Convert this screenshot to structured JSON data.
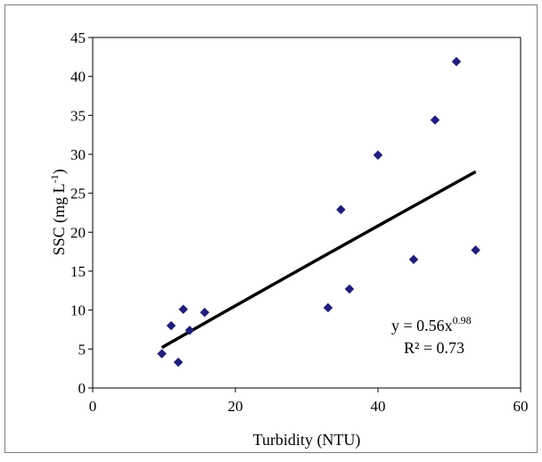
{
  "chart_data": {
    "type": "scatter",
    "xlabel": "Turbidity (NTU)",
    "ylabel_main": "SSC (mg L",
    "ylabel_sup": "-1",
    "ylabel_close": ")",
    "xlim": [
      0,
      60
    ],
    "ylim": [
      0,
      45
    ],
    "x_ticks": [
      0,
      20,
      40,
      60
    ],
    "y_ticks": [
      0,
      5,
      10,
      15,
      20,
      25,
      30,
      35,
      40,
      45
    ],
    "grid": false,
    "legend": "none",
    "marker_color": "#1f1f7a",
    "marker_shape": "diamond",
    "points": [
      {
        "x": 9.7,
        "y": 4.4
      },
      {
        "x": 11.0,
        "y": 8.0
      },
      {
        "x": 12.0,
        "y": 3.3
      },
      {
        "x": 12.7,
        "y": 10.1
      },
      {
        "x": 13.6,
        "y": 7.4
      },
      {
        "x": 15.7,
        "y": 9.7
      },
      {
        "x": 33.0,
        "y": 10.3
      },
      {
        "x": 34.8,
        "y": 22.9
      },
      {
        "x": 36.0,
        "y": 12.7
      },
      {
        "x": 40.0,
        "y": 29.9
      },
      {
        "x": 45.0,
        "y": 16.5
      },
      {
        "x": 48.0,
        "y": 34.4
      },
      {
        "x": 51.0,
        "y": 41.9
      },
      {
        "x": 53.7,
        "y": 17.7
      }
    ],
    "trendline": {
      "type": "power",
      "a": 0.56,
      "b": 0.98,
      "x_range": [
        9.7,
        53.7
      ],
      "color": "#000000"
    },
    "annotation": {
      "equation_base": "y = 0.56x",
      "equation_exp": "0.98",
      "r2": "R² = 0.73"
    }
  }
}
